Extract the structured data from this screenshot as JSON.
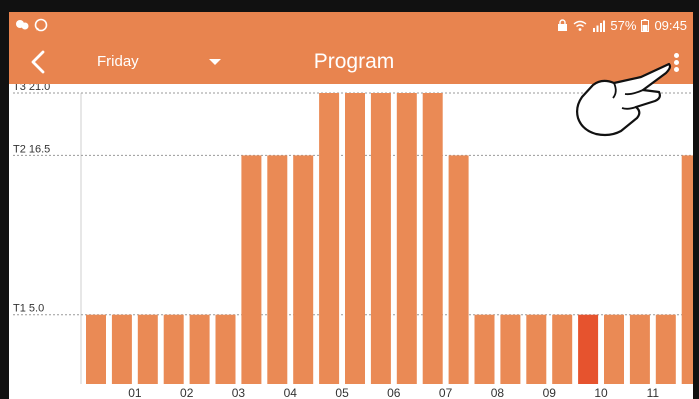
{
  "status_bar": {
    "left_icons": [
      "notification-cluster-icon",
      "whatsapp-icon"
    ],
    "battery_percent": "57%",
    "time": "09:45",
    "right_icons": [
      "lock-icon",
      "wifi-icon",
      "signal-icon",
      "battery-icon"
    ]
  },
  "toolbar": {
    "back_icon": "chevron-left-icon",
    "day": "Friday",
    "title": "Program",
    "menu_icon": "more-vert-icon"
  },
  "colors": {
    "accent": "#e8844f",
    "bar": "#ea8a55",
    "bar_selected": "#e6532e",
    "grid": "#9a9a9a"
  },
  "chart_data": {
    "type": "bar",
    "levels": [
      {
        "label": "T3 21.0",
        "value": 21.0
      },
      {
        "label": "T2 16.5",
        "value": 16.5
      },
      {
        "label": "T1 5.0",
        "value": 5.0
      }
    ],
    "ylim": [
      0,
      21.0
    ],
    "x_tick_labels": [
      "01",
      "02",
      "03",
      "04",
      "05",
      "06",
      "07",
      "08",
      "09",
      "10",
      "11"
    ],
    "values": [
      5.0,
      5.0,
      5.0,
      5.0,
      5.0,
      5.0,
      16.5,
      16.5,
      16.5,
      21.0,
      21.0,
      21.0,
      21.0,
      21.0,
      16.5,
      5.0,
      5.0,
      5.0,
      5.0,
      5.0,
      5.0,
      5.0,
      5.0,
      16.5
    ],
    "selected_index": 19
  }
}
